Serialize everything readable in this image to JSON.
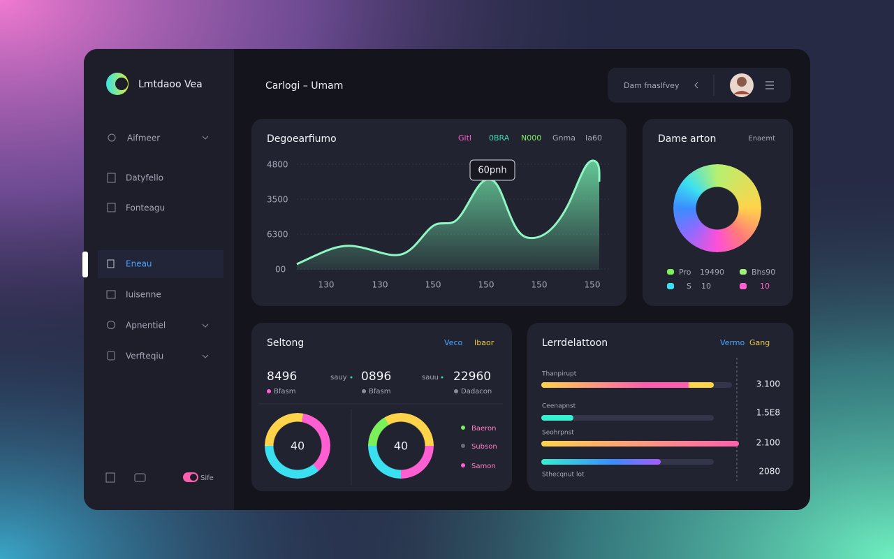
{
  "sidebar": {
    "brand": "Lmtdaoo Vea",
    "menu": [
      "Aifmeer",
      "Datyfello",
      "Fonteagu",
      "Eneau",
      "Iuisenne",
      "Apnentiel",
      "Verfteqiu"
    ],
    "toggle": "Sife"
  },
  "header": {
    "title": "Carlogi – Umam",
    "search": "Dam fnaslfvey"
  },
  "trend": {
    "title": "Degoearfiumo",
    "legend": [
      "Gitl",
      "0BRA",
      "N000",
      "Gnma",
      "Ia60"
    ],
    "y_labels": [
      "4800",
      "3500",
      "6300",
      "00"
    ],
    "x_labels": [
      "130",
      "130",
      "150",
      "150",
      "150",
      "150"
    ],
    "tooltip": "60pnh"
  },
  "distribution": {
    "title": "Dame arton",
    "action": "Enaemt",
    "legend": [
      "Pro",
      "19490",
      "Bhs90",
      "S",
      "10",
      "10"
    ]
  },
  "settings": {
    "title": "Seltong",
    "legend": [
      "Veco",
      "Ibaor"
    ],
    "stats": [
      {
        "value": "8496",
        "label": "Bfasm"
      },
      {
        "prefix": "sauy",
        "value": "0896",
        "label": "Bfasm"
      },
      {
        "prefix": "sauu",
        "value": "22960",
        "label": "Dadacon"
      }
    ],
    "donuts": [
      "40",
      "40"
    ],
    "legend2": [
      "Baeron",
      "Subson",
      "Samon"
    ]
  },
  "leaderboard": {
    "title": "Lerrdelattoon",
    "legend": [
      "Vermo",
      "Gang"
    ],
    "rows": [
      {
        "label": "Thanpirupt",
        "value": "3.100"
      },
      {
        "label": "Ceenapnst",
        "value": "1.5E8"
      },
      {
        "label": "Seohrpnst",
        "value": "2.100"
      },
      {
        "label": "Sthecqnut lot",
        "value": "2080"
      }
    ]
  }
}
